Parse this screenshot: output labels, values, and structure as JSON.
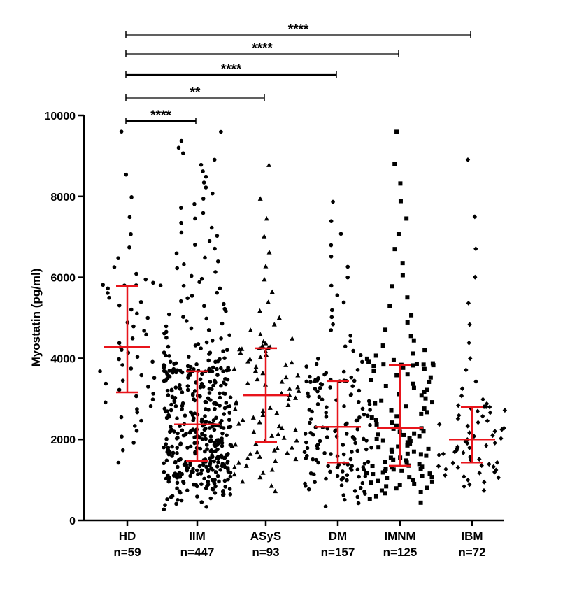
{
  "chart_data": {
    "type": "scatter",
    "title": "",
    "xlabel": "",
    "ylabel": "Myostatin (pg/ml)",
    "ylim": [
      0,
      10000
    ],
    "yticks": [
      0,
      2000,
      4000,
      6000,
      8000,
      10000
    ],
    "grid": false,
    "error_bar_color": "#e8141b",
    "point_color": "#000000",
    "groups": [
      {
        "name": "HD",
        "n_label": "n=59",
        "n": 59,
        "marker": "circle",
        "median": 4280,
        "q1": 3160,
        "q3": 5790,
        "min": 1050,
        "max": 9600
      },
      {
        "name": "IIM",
        "n_label": "n=447",
        "n": 447,
        "marker": "circle",
        "median": 2370,
        "q1": 1470,
        "q3": 3680,
        "min": 200,
        "max": 9600
      },
      {
        "name": "ASyS",
        "n_label": "n=93",
        "n": 93,
        "marker": "triangle",
        "median": 3090,
        "q1": 1930,
        "q3": 4250,
        "min": 500,
        "max": 8780
      },
      {
        "name": "DM",
        "n_label": "n=157",
        "n": 157,
        "marker": "circle",
        "median": 2310,
        "q1": 1430,
        "q3": 3440,
        "min": 200,
        "max": 7870
      },
      {
        "name": "IMNM",
        "n_label": "n=125",
        "n": 125,
        "marker": "square",
        "median": 2280,
        "q1": 1350,
        "q3": 3830,
        "min": 300,
        "max": 9600
      },
      {
        "name": "IBM",
        "n_label": "n=72",
        "n": 72,
        "marker": "diamond",
        "median": 2000,
        "q1": 1430,
        "q3": 2800,
        "min": 580,
        "max": 8900
      }
    ],
    "significance": [
      {
        "from": "HD",
        "to": "IIM",
        "label": "****"
      },
      {
        "from": "HD",
        "to": "ASyS",
        "label": "**"
      },
      {
        "from": "HD",
        "to": "DM",
        "label": "****"
      },
      {
        "from": "HD",
        "to": "IMNM",
        "label": "****"
      },
      {
        "from": "HD",
        "to": "IBM",
        "label": "****"
      }
    ]
  }
}
